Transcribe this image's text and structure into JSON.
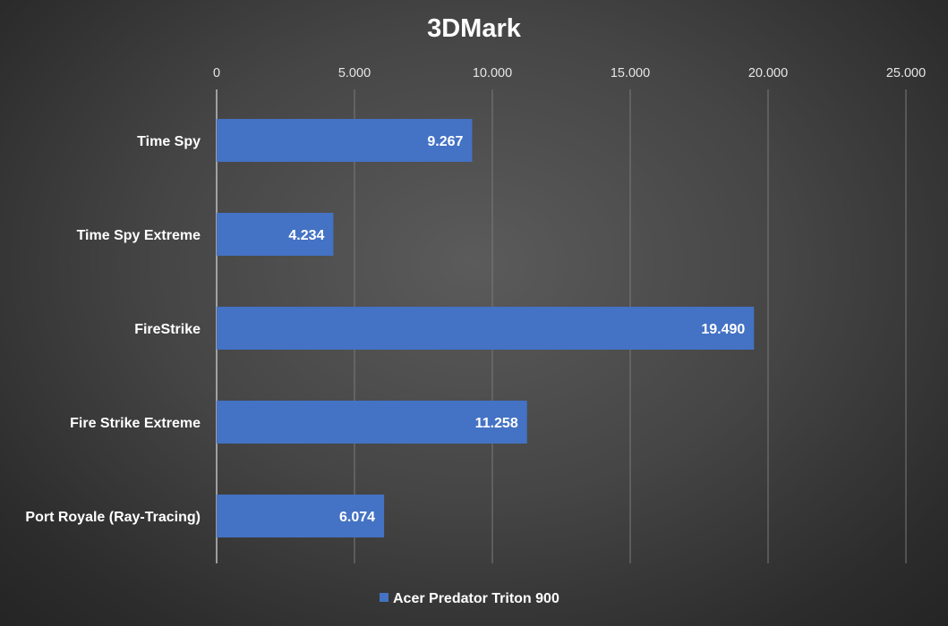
{
  "chart_data": {
    "type": "bar",
    "orientation": "horizontal",
    "title": "3DMark",
    "categories": [
      "Time Spy",
      "Time Spy Extreme",
      "FireStrike",
      "Fire Strike Extreme",
      "Port Royale (Ray-Tracing)"
    ],
    "series": [
      {
        "name": "Acer Predator Triton 900",
        "values": [
          9267,
          4234,
          19490,
          11258,
          6074
        ],
        "value_labels": [
          "9.267",
          "4.234",
          "19.490",
          "11.258",
          "6.074"
        ]
      }
    ],
    "xlim": [
      0,
      25000
    ],
    "x_ticks": [
      0,
      5000,
      10000,
      15000,
      20000,
      25000
    ],
    "x_tick_labels": [
      "0",
      "5.000",
      "10.000",
      "15.000",
      "20.000",
      "25.000"
    ],
    "x_axis_position": "top",
    "grid": true,
    "legend_position": "bottom",
    "colors": {
      "bar": "#4472c4",
      "gridline": "#7a7a7a",
      "text": "#ffffff"
    }
  }
}
